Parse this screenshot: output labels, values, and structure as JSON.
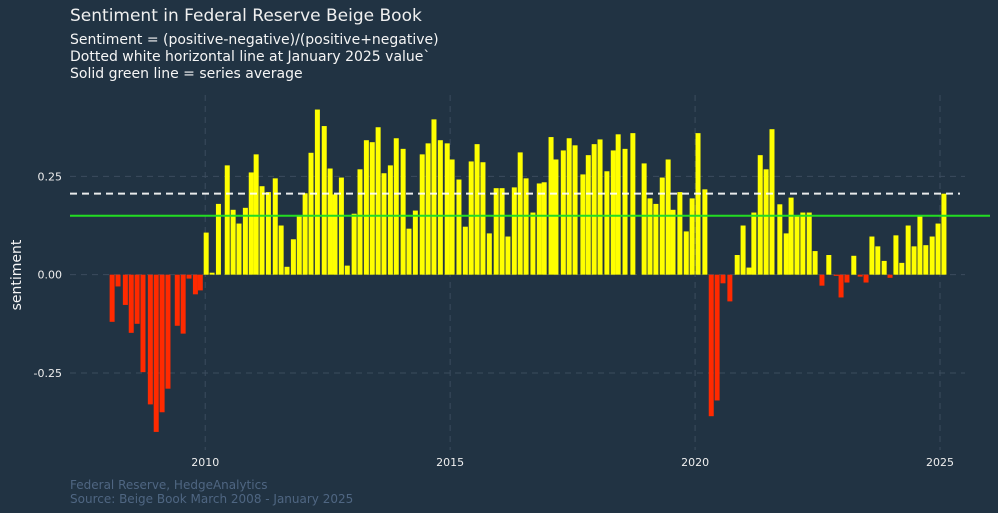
{
  "chart_data": {
    "type": "bar",
    "title": "Sentiment in Federal Reserve Beige Book",
    "subtitle_lines": [
      "Sentiment = (positive-negative)/(positive+negative)",
      "Dotted white horizontal line at January 2025 value`",
      "Solid green line = series average"
    ],
    "caption_lines": [
      "Federal Reserve, HedgeAnalytics",
      "Source: Beige Book March 2008 - January 2025"
    ],
    "xlabel": "",
    "ylabel": "sentiment",
    "xlim": [
      2007.24,
      2025.51
    ],
    "ylim": [
      -0.446,
      0.457
    ],
    "x_ticks": [
      2010,
      2015,
      2020,
      2025
    ],
    "x_tick_labels": [
      "2010",
      "2015",
      "2020",
      "2025"
    ],
    "y_ticks": [
      -0.25,
      0,
      0.25
    ],
    "y_tick_labels": [
      "-0.25",
      "0.00",
      "0.25"
    ],
    "grid": true,
    "reference_lines": {
      "january_2025_value": 0.206,
      "series_average": 0.15
    },
    "colors": {
      "background": "#213343",
      "positive": "#ffff00",
      "negative": "#ff2a00",
      "average_line": "#22dd22",
      "reference_line": "#ffffff",
      "grid": "#3b4c5e"
    },
    "x": [
      2008.1,
      2008.22,
      2008.37,
      2008.49,
      2008.61,
      2008.73,
      2008.88,
      2009.0,
      2009.12,
      2009.24,
      2009.43,
      2009.55,
      2009.67,
      2009.8,
      2009.9,
      2010.02,
      2010.14,
      2010.27,
      2010.45,
      2010.57,
      2010.69,
      2010.82,
      2010.94,
      2011.04,
      2011.16,
      2011.29,
      2011.43,
      2011.55,
      2011.67,
      2011.8,
      2011.92,
      2012.04,
      2012.16,
      2012.29,
      2012.43,
      2012.55,
      2012.65,
      2012.78,
      2012.9,
      2013.04,
      2013.16,
      2013.29,
      2013.41,
      2013.53,
      2013.65,
      2013.78,
      2013.9,
      2014.04,
      2014.16,
      2014.29,
      2014.43,
      2014.55,
      2014.67,
      2014.8,
      2014.94,
      2015.04,
      2015.18,
      2015.31,
      2015.43,
      2015.55,
      2015.67,
      2015.8,
      2015.94,
      2016.06,
      2016.18,
      2016.31,
      2016.43,
      2016.55,
      2016.69,
      2016.82,
      2016.92,
      2017.06,
      2017.16,
      2017.31,
      2017.43,
      2017.55,
      2017.71,
      2017.82,
      2017.94,
      2018.06,
      2018.2,
      2018.33,
      2018.43,
      2018.57,
      2018.73,
      2018.96,
      2019.08,
      2019.2,
      2019.33,
      2019.45,
      2019.55,
      2019.69,
      2019.82,
      2019.94,
      2020.06,
      2020.2,
      2020.33,
      2020.45,
      2020.57,
      2020.71,
      2020.86,
      2020.98,
      2021.1,
      2021.2,
      2021.33,
      2021.45,
      2021.57,
      2021.73,
      2021.86,
      2021.96,
      2022.08,
      2022.2,
      2022.33,
      2022.45,
      2022.59,
      2022.73,
      2022.88,
      2022.98,
      2023.1,
      2023.24,
      2023.37,
      2023.49,
      2023.61,
      2023.73,
      2023.86,
      2023.98,
      2024.1,
      2024.22,
      2024.35,
      2024.47,
      2024.59,
      2024.71,
      2024.84,
      2024.96,
      2025.08
    ],
    "values": [
      -0.12,
      -0.03,
      -0.077,
      -0.148,
      -0.125,
      -0.248,
      -0.33,
      -0.4,
      -0.35,
      -0.29,
      -0.13,
      -0.15,
      -0.01,
      -0.05,
      -0.04,
      0.107,
      0.005,
      0.18,
      0.278,
      0.165,
      0.13,
      0.17,
      0.26,
      0.306,
      0.225,
      0.21,
      0.245,
      0.125,
      0.02,
      0.09,
      0.15,
      0.207,
      0.31,
      0.42,
      0.378,
      0.27,
      0.204,
      0.247,
      0.023,
      0.155,
      0.268,
      0.342,
      0.337,
      0.375,
      0.258,
      0.278,
      0.347,
      0.32,
      0.117,
      0.163,
      0.306,
      0.334,
      0.395,
      0.342,
      0.334,
      0.293,
      0.242,
      0.122,
      0.288,
      0.332,
      0.286,
      0.105,
      0.22,
      0.22,
      0.097,
      0.222,
      0.311,
      0.245,
      0.158,
      0.232,
      0.235,
      0.35,
      0.293,
      0.316,
      0.347,
      0.329,
      0.255,
      0.304,
      0.332,
      0.344,
      0.263,
      0.316,
      0.357,
      0.32,
      0.36,
      0.283,
      0.194,
      0.18,
      0.247,
      0.293,
      0.165,
      0.21,
      0.11,
      0.194,
      0.36,
      0.217,
      -0.36,
      -0.32,
      -0.022,
      -0.068,
      0.05,
      0.125,
      0.018,
      0.158,
      0.304,
      0.268,
      0.37,
      0.179,
      0.105,
      0.196,
      0.15,
      0.158,
      0.158,
      0.06,
      -0.028,
      0.05,
      -0.003,
      -0.058,
      -0.02,
      0.048,
      -0.005,
      -0.02,
      0.097,
      0.072,
      0.035,
      -0.008,
      0.1,
      0.03,
      0.125,
      0.072,
      0.148,
      0.075,
      0.097,
      0.13,
      0.206
    ]
  }
}
